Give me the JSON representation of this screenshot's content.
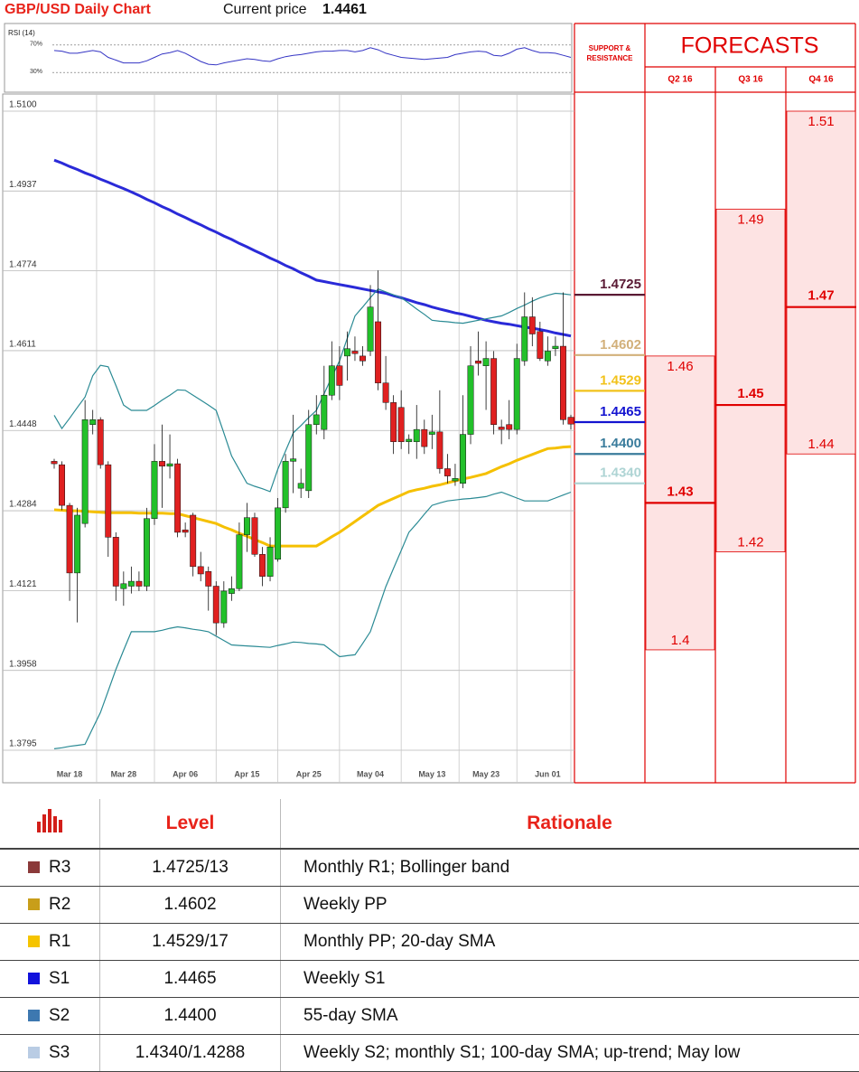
{
  "chart_data": [
    {
      "type": "candlestick",
      "title": "GBP/USD Daily Chart",
      "current_price_label": "Current price",
      "current_price": 1.4461,
      "categories": [
        null,
        null,
        "Mar 18",
        null,
        null,
        null,
        null,
        null,
        null,
        "Mar 28",
        null,
        null,
        null,
        null,
        null,
        null,
        null,
        "Apr 06",
        null,
        null,
        null,
        null,
        null,
        null,
        null,
        "Apr 15",
        null,
        null,
        null,
        null,
        null,
        null,
        null,
        "Apr 25",
        null,
        null,
        null,
        null,
        null,
        null,
        null,
        "May 04",
        null,
        null,
        null,
        null,
        null,
        null,
        null,
        "May 13",
        null,
        null,
        null,
        null,
        null,
        null,
        "May 23",
        null,
        null,
        null,
        null,
        null,
        null,
        null,
        "Jun 01",
        null,
        null,
        null
      ],
      "open": [
        1.4385,
        1.4378,
        1.4295,
        1.4157,
        1.4258,
        1.446,
        1.447,
        1.4378,
        1.423,
        1.4125,
        1.413,
        1.414,
        1.413,
        1.4268,
        1.4385,
        1.4375,
        1.438,
        1.4245,
        1.4275,
        1.417,
        1.416,
        1.413,
        1.4055,
        1.4115,
        1.4125,
        1.4235,
        1.427,
        1.4195,
        1.415,
        1.4185,
        1.429,
        1.4385,
        1.433,
        1.4325,
        1.446,
        1.445,
        1.452,
        1.458,
        1.46,
        1.461,
        1.46,
        1.461,
        1.467,
        1.4545,
        1.4505,
        1.4495,
        1.4425,
        1.4425,
        1.445,
        1.444,
        1.4445,
        1.437,
        1.4345,
        1.434,
        1.444,
        1.459,
        1.458,
        1.4595,
        1.4455,
        1.446,
        1.445,
        1.459,
        1.468,
        1.465,
        1.459,
        1.4615,
        1.462,
        1.4475
      ],
      "high": [
        1.439,
        1.4385,
        1.43,
        1.429,
        1.451,
        1.449,
        1.4475,
        1.4385,
        1.424,
        1.416,
        1.417,
        1.416,
        1.429,
        1.442,
        1.446,
        1.444,
        1.439,
        1.426,
        1.428,
        1.42,
        1.417,
        1.414,
        1.414,
        1.415,
        1.426,
        1.43,
        1.428,
        1.421,
        1.423,
        1.431,
        1.44,
        1.448,
        1.437,
        1.449,
        1.452,
        1.458,
        1.463,
        1.462,
        1.465,
        1.464,
        1.462,
        1.4745,
        1.4775,
        1.46,
        1.452,
        1.453,
        1.444,
        1.45,
        1.447,
        1.448,
        1.453,
        1.44,
        1.438,
        1.452,
        1.462,
        1.465,
        1.463,
        1.461,
        1.447,
        1.451,
        1.4625,
        1.473,
        1.472,
        1.467,
        1.464,
        1.464,
        1.473,
        1.448
      ],
      "low": [
        1.437,
        1.4285,
        1.41,
        1.4056,
        1.425,
        1.444,
        1.437,
        1.419,
        1.41,
        1.409,
        1.4115,
        1.412,
        1.412,
        1.4255,
        1.429,
        1.435,
        1.423,
        1.423,
        1.415,
        1.414,
        1.408,
        1.403,
        1.4045,
        1.41,
        1.412,
        1.42,
        1.419,
        1.413,
        1.414,
        1.418,
        1.428,
        1.432,
        1.431,
        1.431,
        1.444,
        1.443,
        1.451,
        1.451,
        1.455,
        1.459,
        1.458,
        1.46,
        1.453,
        1.449,
        1.44,
        1.441,
        1.44,
        1.439,
        1.44,
        1.441,
        1.436,
        1.434,
        1.4335,
        1.433,
        1.442,
        1.456,
        1.449,
        1.444,
        1.442,
        1.443,
        1.444,
        1.458,
        1.462,
        1.459,
        1.458,
        1.46,
        1.446,
        1.445
      ],
      "close": [
        1.438,
        1.4295,
        1.4157,
        1.4275,
        1.447,
        1.447,
        1.4378,
        1.423,
        1.413,
        1.4135,
        1.414,
        1.413,
        1.4268,
        1.4385,
        1.4375,
        1.438,
        1.424,
        1.424,
        1.417,
        1.4155,
        1.413,
        1.4055,
        1.412,
        1.4125,
        1.4235,
        1.427,
        1.4195,
        1.415,
        1.421,
        1.429,
        1.4385,
        1.439,
        1.434,
        1.446,
        1.448,
        1.452,
        1.458,
        1.454,
        1.4615,
        1.4605,
        1.459,
        1.47,
        1.4545,
        1.4505,
        1.4425,
        1.4425,
        1.443,
        1.445,
        1.4415,
        1.4445,
        1.437,
        1.4355,
        1.435,
        1.444,
        1.458,
        1.4585,
        1.4595,
        1.446,
        1.445,
        1.445,
        1.4595,
        1.468,
        1.4645,
        1.4595,
        1.461,
        1.462,
        1.447,
        1.4461
      ],
      "up_color": "#22c02a",
      "down_color": "#e02020",
      "lines": [
        {
          "color": "#2a2ad8",
          "width": 3,
          "values": [
            1.5,
            1.4994,
            1.4987,
            1.4981,
            1.4974,
            1.4968,
            1.4961,
            1.4955,
            1.4948,
            1.4942,
            1.4935,
            1.4928,
            1.492,
            1.4913,
            1.4905,
            1.4898,
            1.489,
            1.4883,
            1.4875,
            1.4868,
            1.486,
            1.4853,
            1.4845,
            1.4838,
            1.483,
            1.4823,
            1.4815,
            1.4808,
            1.48,
            1.4793,
            1.4785,
            1.4778,
            1.477,
            1.4763,
            1.4755,
            1.4752,
            1.4749,
            1.4746,
            1.4743,
            1.474,
            1.4737,
            1.4734,
            1.4731,
            1.4728,
            1.4723,
            1.4719,
            1.4714,
            1.4709,
            1.4705,
            1.47,
            1.4696,
            1.4692,
            1.4688,
            1.4685,
            1.4681,
            1.4677,
            1.4673,
            1.467,
            1.4667,
            1.4665,
            1.4662,
            1.4659,
            1.4657,
            1.4654,
            1.4651,
            1.4647,
            1.4644,
            1.4641
          ]
        },
        {
          "color": "#f5c000",
          "width": 3,
          "values": [
            1.4286,
            1.4285,
            1.4284,
            1.4284,
            1.4283,
            1.4282,
            1.4281,
            1.428,
            1.428,
            1.428,
            1.428,
            1.4279,
            1.4279,
            1.4279,
            1.4279,
            1.4278,
            1.4278,
            1.4274,
            1.427,
            1.4266,
            1.4262,
            1.4258,
            1.4251,
            1.4245,
            1.4238,
            1.4232,
            1.4225,
            1.4219,
            1.4212,
            1.4212,
            1.4212,
            1.4212,
            1.4212,
            1.4212,
            1.4212,
            1.4221,
            1.4231,
            1.424,
            1.4251,
            1.4262,
            1.4273,
            1.4284,
            1.4295,
            1.4302,
            1.4309,
            1.4316,
            1.4323,
            1.4327,
            1.433,
            1.4334,
            1.4337,
            1.4341,
            1.4345,
            1.4349,
            1.4352,
            1.4356,
            1.436,
            1.4367,
            1.4374,
            1.438,
            1.4387,
            1.4393,
            1.4399,
            1.4405,
            1.4411,
            1.4412,
            1.4414,
            1.4415
          ]
        },
        {
          "color": "#2a8a94",
          "width": 1.2,
          "values": [
            1.4479,
            1.4452,
            1.4473,
            1.4495,
            1.4516,
            1.456,
            1.4581,
            1.4578,
            1.454,
            1.45,
            1.4489,
            1.4489,
            1.4489,
            1.4499,
            1.451,
            1.452,
            1.4531,
            1.453,
            1.452,
            1.451,
            1.45,
            1.4489,
            1.4443,
            1.4396,
            1.4368,
            1.434,
            1.4334,
            1.4329,
            1.4323,
            1.4369,
            1.4406,
            1.4443,
            1.4458,
            1.4474,
            1.4489,
            1.4523,
            1.4557,
            1.459,
            1.4636,
            1.4682,
            1.47,
            1.4719,
            1.4737,
            1.4731,
            1.4725,
            1.4719,
            1.4708,
            1.4696,
            1.4685,
            1.4673,
            1.4671,
            1.467,
            1.4668,
            1.4667,
            1.467,
            1.4673,
            1.4676,
            1.4679,
            1.4682,
            1.4689,
            1.4697,
            1.4704,
            1.4712,
            1.4719,
            1.4724,
            1.4728,
            1.4727,
            1.4725
          ]
        },
        {
          "color": "#2a8a94",
          "width": 1.2,
          "values": [
            1.3798,
            1.38,
            1.3803,
            1.3805,
            1.3807,
            1.384,
            1.3872,
            1.3916,
            1.396,
            1.3999,
            1.4037,
            1.4037,
            1.4037,
            1.4037,
            1.404,
            1.4044,
            1.4047,
            1.4045,
            1.4042,
            1.404,
            1.4037,
            1.4028,
            1.4019,
            1.401,
            1.4009,
            1.4008,
            1.4007,
            1.4006,
            1.4005,
            1.4009,
            1.4012,
            1.4016,
            1.4015,
            1.4013,
            1.4012,
            1.401,
            1.3998,
            1.3986,
            1.3988,
            1.399,
            1.4013,
            1.4037,
            1.4083,
            1.4129,
            1.4166,
            1.4203,
            1.424,
            1.4258,
            1.4277,
            1.4295,
            1.43,
            1.4304,
            1.4306,
            1.4308,
            1.4309,
            1.4311,
            1.4313,
            1.4318,
            1.4322,
            1.4316,
            1.431,
            1.4304,
            1.4304,
            1.4304,
            1.4304,
            1.431,
            1.4316,
            1.4322
          ]
        }
      ],
      "ylim": [
        1.3795,
        1.51
      ],
      "yticks": [
        {
          "value": 1.51,
          "label": "1.5100"
        },
        1.4937,
        1.4774,
        1.4611,
        1.4448,
        1.4284,
        1.4121,
        1.3958,
        1.3795
      ],
      "grid": true,
      "levels_title": "SUPPORT & RESISTANCE",
      "levels": [
        {
          "value": 1.4725,
          "color": "#5a1a34"
        },
        {
          "value": 1.4602,
          "color": "#d2b07a"
        },
        {
          "value": 1.4529,
          "color": "#f2c21a"
        },
        {
          "value": 1.4465,
          "color": "#1414d0"
        },
        {
          "value": 1.44,
          "label": "1.4400",
          "color": "#3a7c9c"
        },
        {
          "value": 1.434,
          "label": "1.4340",
          "color": "#aed4d4"
        }
      ]
    },
    {
      "type": "line",
      "title": "RSI (14)",
      "color": "#3434c4",
      "values": [
        62,
        61,
        58,
        58,
        60,
        62,
        60,
        52,
        48,
        44,
        44,
        44,
        47,
        52,
        57,
        59,
        62,
        58,
        52,
        46,
        42,
        41,
        44,
        46,
        48,
        50,
        49,
        47,
        46,
        50,
        53,
        55,
        56,
        58,
        60,
        61,
        61,
        62,
        62,
        60,
        62,
        66,
        63,
        58,
        55,
        52,
        51,
        50,
        49,
        50,
        51,
        52,
        56,
        58,
        60,
        61,
        60,
        55,
        54,
        58,
        64,
        66,
        62,
        59,
        59,
        58,
        55,
        52
      ],
      "ylim": [
        0,
        100
      ],
      "yticks": [
        {
          "value": 70,
          "label": "70%"
        },
        {
          "value": 30,
          "label": "30%"
        }
      ]
    },
    {
      "type": "forecast",
      "title": "FORECASTS",
      "categories": [
        "Q2 16",
        "Q3 16",
        "Q4 16"
      ],
      "high": [
        1.46,
        1.49,
        1.51
      ],
      "central": [
        1.43,
        1.45,
        1.47
      ],
      "low": [
        1.4,
        1.42,
        1.44
      ],
      "color": "#e00000",
      "fill": "#fde3e3"
    }
  ],
  "table": {
    "header": [
      "Level",
      "Rationale"
    ],
    "rows": [
      {
        "code": "R3",
        "color": "#8b3a3a",
        "level": "1.4725/13",
        "rationale": "Monthly R1; Bollinger band"
      },
      {
        "code": "R2",
        "color": "#c89e1a",
        "level": "1.4602",
        "rationale": "Weekly PP"
      },
      {
        "code": "R1",
        "color": "#f5c400",
        "level": "1.4529/17",
        "rationale": "Monthly PP; 20-day SMA"
      },
      {
        "code": "S1",
        "color": "#1212dc",
        "level": "1.4465",
        "rationale": "Weekly S1"
      },
      {
        "code": "S2",
        "color": "#3d78b0",
        "level": "1.4400",
        "rationale": "55-day SMA"
      },
      {
        "code": "S3",
        "color": "#b9cce4",
        "level": "1.4340/1.4288",
        "rationale": "Weekly S2; monthly S1; 100-day SMA; up-trend; May low"
      }
    ]
  }
}
